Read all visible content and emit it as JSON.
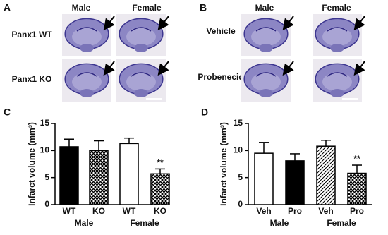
{
  "panels": [
    {
      "letter": "A",
      "columns": [
        "Male",
        "Female"
      ],
      "rows": [
        "Panx1 WT",
        "Panx1 KO"
      ]
    },
    {
      "letter": "B",
      "columns": [
        "Male",
        "Female"
      ],
      "rows": [
        "Vehicle",
        "Probenecid"
      ]
    }
  ],
  "chart_data": [
    {
      "type": "bar",
      "panel_label": "C",
      "ylabel": "Infarct volume (mm³)",
      "categories": [
        "WT",
        "KO",
        "WT",
        "KO"
      ],
      "values": [
        10.7,
        10.0,
        11.3,
        5.7
      ],
      "errors": [
        1.4,
        1.8,
        1.0,
        0.9
      ],
      "fills": [
        "black",
        "crosshatch",
        "white",
        "crosshatch"
      ],
      "significance": [
        null,
        null,
        null,
        "**"
      ],
      "groups": [
        {
          "label": "Male",
          "size": 2
        },
        {
          "label": "Female",
          "size": 2
        }
      ],
      "ylim": [
        0,
        15
      ],
      "yticks": [
        0,
        5,
        10,
        15
      ]
    },
    {
      "type": "bar",
      "panel_label": "D",
      "ylabel": "Infarct volume (mm³)",
      "categories": [
        "Veh",
        "Pro",
        "Veh",
        "Pro"
      ],
      "values": [
        9.5,
        8.1,
        10.8,
        5.8
      ],
      "errors": [
        2.0,
        1.3,
        1.1,
        1.5
      ],
      "fills": [
        "white",
        "black",
        "diagonal",
        "crosshatch"
      ],
      "significance": [
        null,
        null,
        null,
        "**"
      ],
      "groups": [
        {
          "label": "Male",
          "size": 2
        },
        {
          "label": "Female",
          "size": 2
        }
      ],
      "ylim": [
        0,
        15
      ],
      "yticks": [
        0,
        5,
        10,
        15
      ]
    }
  ]
}
